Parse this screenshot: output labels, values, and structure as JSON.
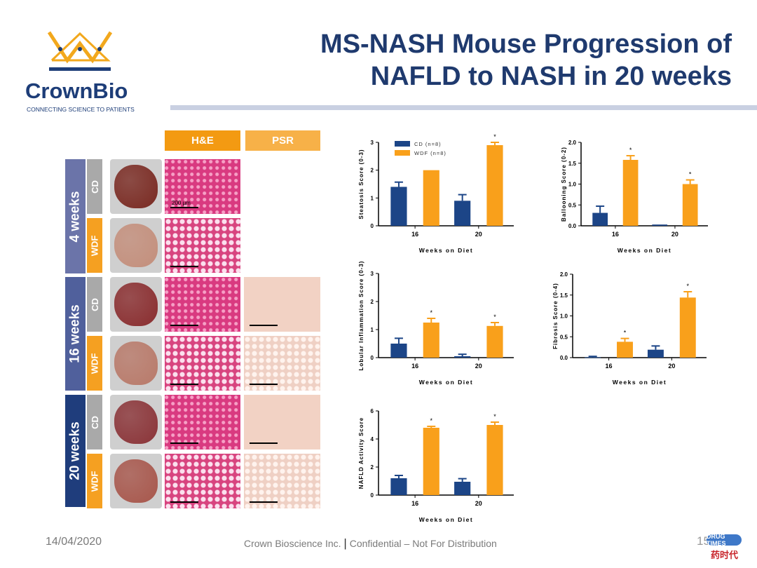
{
  "header": {
    "title_line1": "MS-NASH Mouse Progression of",
    "title_line2": "NAFLD to NASH in 20 weeks"
  },
  "logo": {
    "name": "CrownBio",
    "tagline": "CONNECTING SCIENCE TO PATIENTS",
    "colors": {
      "gold": "#f2a81d",
      "navy": "#1d3d78"
    }
  },
  "histology": {
    "columns": [
      "H&E",
      "PSR"
    ],
    "scale_bar": "200 µm",
    "timepoints": [
      {
        "label": "4 weeks",
        "color": "#6b74a9",
        "groups": [
          "CD",
          "WDF"
        ]
      },
      {
        "label": "16 weeks",
        "color": "#50609c",
        "groups": [
          "CD",
          "WDF"
        ]
      },
      {
        "label": "20 weeks",
        "color": "#1f3d7c",
        "groups": [
          "CD",
          "WDF"
        ]
      }
    ],
    "group_colors": {
      "CD": "#a9a9a9",
      "WDF": "#f5a021"
    }
  },
  "legend": {
    "cd": "CD (n=8)",
    "wdf": "WDF (n=8)"
  },
  "chart_data": [
    {
      "type": "bar",
      "title": "",
      "ylabel": "Steatosis Score (0-3)",
      "xlabel": "Weeks on Diet",
      "categories": [
        "16",
        "20"
      ],
      "ylim": [
        0,
        3
      ],
      "yticks": [
        "0",
        "1",
        "2",
        "3"
      ],
      "series": [
        {
          "name": "CD (n=8)",
          "color": "#1c4587",
          "values": [
            1.4,
            0.9
          ],
          "errors": [
            0.17,
            0.22
          ]
        },
        {
          "name": "WDF (n=8)",
          "color": "#f9a01b",
          "values": [
            2.0,
            2.9
          ],
          "errors": [
            0,
            0.1
          ]
        }
      ],
      "annotations": [
        "",
        "*"
      ],
      "legend": "top-left"
    },
    {
      "type": "bar",
      "title": "",
      "ylabel": "Ballooning Score (0-2)",
      "xlabel": "Weeks on Diet",
      "categories": [
        "16",
        "20"
      ],
      "ylim": [
        0,
        2
      ],
      "yticks": [
        "0.0",
        "0.5",
        "1.0",
        "1.5",
        "2.0"
      ],
      "series": [
        {
          "color": "#1c4587",
          "values": [
            0.31,
            0.03
          ],
          "errors": [
            0.16,
            0
          ]
        },
        {
          "color": "#f9a01b",
          "values": [
            1.58,
            1.0
          ],
          "errors": [
            0.1,
            0.1
          ]
        }
      ],
      "annotations": [
        "*",
        "*"
      ]
    },
    {
      "type": "bar",
      "title": "",
      "ylabel": "Lobular Inflammation Score (0-3)",
      "xlabel": "Weeks on Diet",
      "categories": [
        "16",
        "20"
      ],
      "ylim": [
        0,
        3
      ],
      "yticks": [
        "0",
        "1",
        "2",
        "3"
      ],
      "series": [
        {
          "color": "#1c4587",
          "values": [
            0.5,
            0.05
          ],
          "errors": [
            0.19,
            0.07
          ]
        },
        {
          "color": "#f9a01b",
          "values": [
            1.25,
            1.13
          ],
          "errors": [
            0.15,
            0.12
          ]
        }
      ],
      "annotations": [
        "*",
        "*"
      ]
    },
    {
      "type": "bar",
      "title": "",
      "ylabel": "Fibrosis Score (0-4)",
      "xlabel": "Weeks on Diet",
      "categories": [
        "16",
        "20"
      ],
      "ylim": [
        0,
        2
      ],
      "yticks": [
        "0.0",
        "0.5",
        "1.0",
        "1.5",
        "2.0"
      ],
      "series": [
        {
          "color": "#1c4587",
          "values": [
            0.01,
            0.19
          ],
          "errors": [
            0.02,
            0.09
          ]
        },
        {
          "color": "#f9a01b",
          "values": [
            0.38,
            1.44
          ],
          "errors": [
            0.08,
            0.14
          ]
        }
      ],
      "annotations": [
        "*",
        "*"
      ]
    },
    {
      "type": "bar",
      "title": "",
      "ylabel": "NAFLD Activity Score",
      "xlabel": "Weeks on Diet",
      "categories": [
        "16",
        "20"
      ],
      "ylim": [
        0,
        6
      ],
      "yticks": [
        "0",
        "2",
        "4",
        "6"
      ],
      "series": [
        {
          "color": "#1c4587",
          "values": [
            1.2,
            0.95
          ],
          "errors": [
            0.2,
            0.22
          ]
        },
        {
          "color": "#f9a01b",
          "values": [
            4.8,
            5.0
          ],
          "errors": [
            0.1,
            0.2
          ]
        }
      ],
      "annotations": [
        "*",
        "*"
      ]
    }
  ],
  "footer": {
    "date": "14/04/2020",
    "company": "Crown Bioscience Inc.",
    "separator": "|",
    "confidential": "Confidential – Not For Distribution",
    "page": "15"
  },
  "watermark": {
    "en": "DRUG TIMES",
    "cn": "药时代"
  }
}
